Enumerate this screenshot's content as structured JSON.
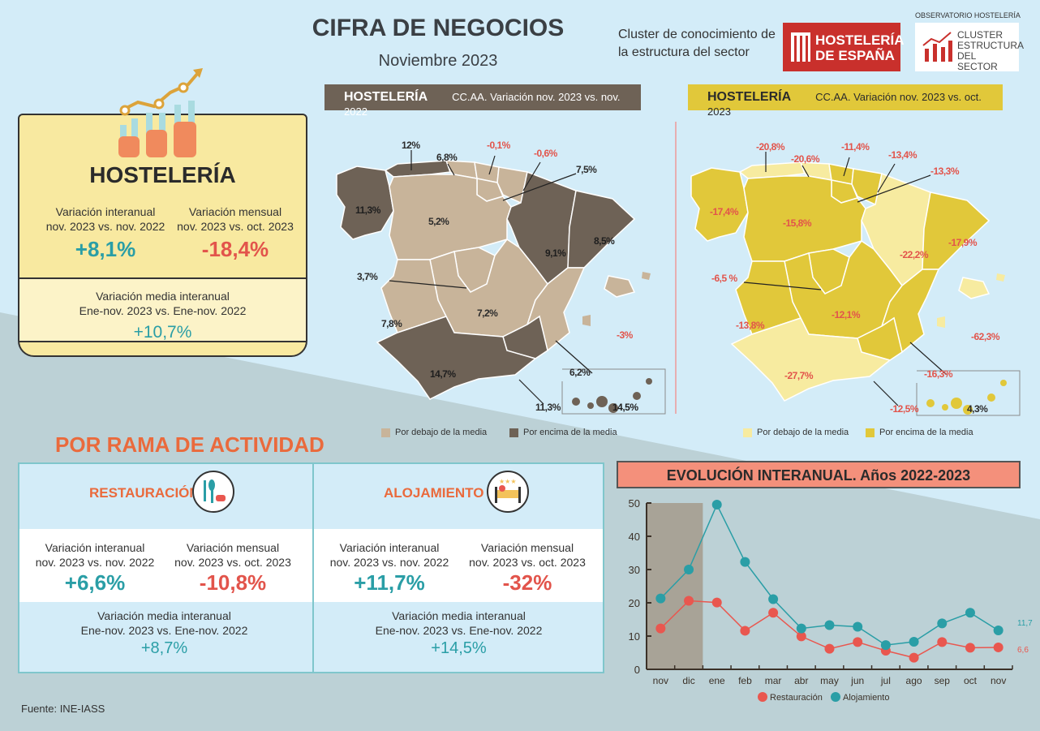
{
  "header": {
    "title": "CIFRA DE NEGOCIOS",
    "subtitle": "Noviembre 2023",
    "cluster_line1": "Cluster de conocimiento de",
    "cluster_line2": "la estructura del sector",
    "logo_hostelería": {
      "line1": "HOSTELERÍA",
      "line2": "DE ESPAÑA"
    },
    "logo_observatorio": {
      "top": "OBSERVATORIO HOSTELERÍA",
      "line1": "CLUSTER",
      "line2": "ESTRUCTURA",
      "line3": "DEL SECTOR"
    }
  },
  "hosteleria_card": {
    "title": "HOSTELERÍA",
    "interanual_label1": "Variación interanual",
    "interanual_label2": "nov. 2023 vs. nov. 2022",
    "interanual_value": "+8,1%",
    "mensual_label1": "Variación mensual",
    "mensual_label2": "nov. 2023 vs. oct. 2023",
    "mensual_value": "-18,4%",
    "media_label1": "Variación media interanual",
    "media_label2": "Ene-nov. 2023 vs. Ene-nov. 2022",
    "media_value": "+10,7%"
  },
  "map_interanual": {
    "title": "HOSTELERÍA",
    "subtitle": "CC.AA. Variación nov. 2023 vs. nov. 2022",
    "legend_below": "Por debajo de la media",
    "legend_above": "Por encima de la media",
    "color_below": "#c8b49a",
    "color_above": "#6e6256",
    "regions": {
      "galicia": "11,3%",
      "asturias": "12%",
      "cantabria": "6,8%",
      "pais_vasco": "-0,1%",
      "navarra": "-0,6%",
      "rioja": "7,5%",
      "castilla_leon": "5,2%",
      "aragon": "9,1%",
      "cataluna": "8,5%",
      "madrid": "3,7%",
      "castilla_la_mancha": "7,2%",
      "extremadura": "7,8%",
      "valencia": "6,2%",
      "murcia": "11,3%",
      "andalucia": "14,7%",
      "baleares": "-3%",
      "canarias": "14,5%"
    }
  },
  "map_mensual": {
    "title": "HOSTELERÍA",
    "subtitle": "CC.AA. Variación nov. 2023 vs. oct. 2023",
    "legend_below": "Por debajo de la media",
    "legend_above": "Por encima de la media",
    "color_below": "#f7eba0",
    "color_above": "#e1c83a",
    "regions": {
      "galicia": "-17,4%",
      "asturias": "-20,8%",
      "cantabria": "-20,6%",
      "pais_vasco": "-11,4%",
      "navarra": "-13,4%",
      "rioja": "-13,3%",
      "castilla_leon": "-15,8%",
      "aragon": "-22,2%",
      "cataluna": "-17,9%",
      "madrid": "-6,5  %",
      "castilla_la_mancha": "-12,1%",
      "extremadura": "-13,8%",
      "valencia": "-16,3%",
      "murcia": "-12,5%",
      "andalucia": "-27,7%",
      "baleares": "-62,3%",
      "canarias": "4,3%"
    }
  },
  "rama": {
    "title": "POR RAMA DE ACTIVIDAD",
    "restauracion": {
      "title": "RESTAURACIÓN",
      "icon": "cutlery-cup-icon",
      "interanual_label1": "Variación interanual",
      "interanual_label2": "nov. 2023 vs. nov. 2022",
      "interanual_value": "+6,6%",
      "mensual_label1": "Variación mensual",
      "mensual_label2": "nov. 2023 vs. oct. 2023",
      "mensual_value": "-10,8%",
      "media_label1": "Variación media interanual",
      "media_label2": "Ene-nov. 2023 vs. Ene-nov. 2022",
      "media_value": "+8,7%"
    },
    "alojamiento": {
      "title": "ALOJAMIENTO",
      "icon": "hotel-bed-icon",
      "interanual_label1": "Variación interanual",
      "interanual_label2": "nov. 2023 vs. nov. 2022",
      "interanual_value": "+11,7%",
      "mensual_label1": "Variación mensual",
      "mensual_label2": "nov. 2023 vs. oct. 2023",
      "mensual_value": "-32%",
      "media_label1": "Variación media interanual",
      "media_label2": "Ene-nov. 2023 vs. Ene-nov. 2022",
      "media_value": "+14,5%"
    }
  },
  "chart_data": {
    "type": "line",
    "title": "EVOLUCIÓN INTERANUAL. Años 2022-2023",
    "categories": [
      "nov",
      "dic",
      "ene",
      "feb",
      "mar",
      "abr",
      "may",
      "jun",
      "jul",
      "ago",
      "sep",
      "oct",
      "nov"
    ],
    "ylim": [
      0,
      50
    ],
    "yticks": [
      "0",
      "10",
      "20",
      "30",
      "40",
      "50"
    ],
    "shaded_categories": [
      "nov",
      "dic"
    ],
    "legend": "bottom",
    "series": [
      {
        "name": "Restauración",
        "color": "#e9574f",
        "values": [
          12.3,
          20.6,
          20.1,
          11.6,
          17.0,
          9.9,
          6.2,
          8.2,
          5.6,
          3.5,
          8.2,
          6.5,
          6.6
        ],
        "end_label": "6,6"
      },
      {
        "name": "Alojamiento",
        "color": "#2a9ea6",
        "values": [
          21.3,
          30.0,
          49.5,
          32.3,
          21.1,
          12.3,
          13.3,
          12.8,
          7.3,
          8.3,
          13.8,
          17.0,
          11.7
        ],
        "end_label": "11,7"
      }
    ]
  },
  "footer": {
    "source": "Fuente: INE-IASS"
  }
}
